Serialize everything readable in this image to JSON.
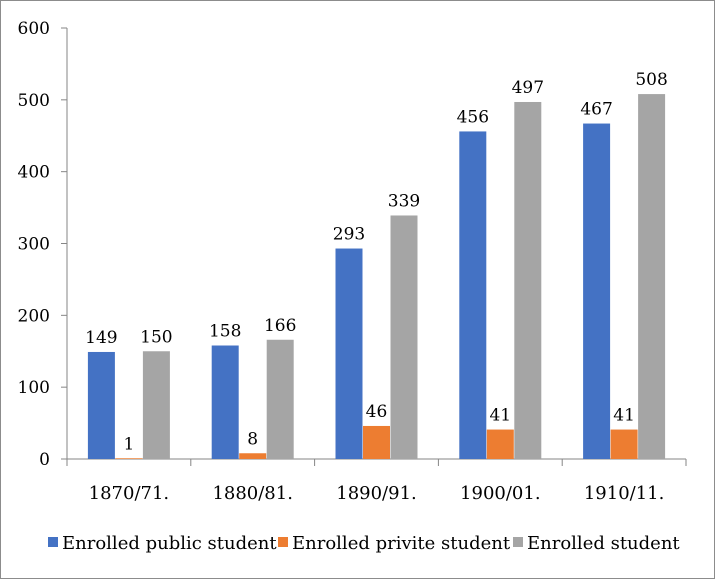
{
  "chart_data": {
    "type": "bar",
    "categories": [
      "1870/71.",
      "1880/81.",
      "1890/91.",
      "1900/01.",
      "1910/11."
    ],
    "series": [
      {
        "name": "Enrolled public student",
        "values": [
          149,
          158,
          293,
          456,
          467
        ],
        "color": "#4472c4"
      },
      {
        "name": "Enrolled privite student",
        "values": [
          1,
          8,
          46,
          41,
          41
        ],
        "color": "#ed7d31"
      },
      {
        "name": "Enrolled student",
        "values": [
          150,
          166,
          339,
          497,
          508
        ],
        "color": "#a5a5a5"
      }
    ],
    "ylim": [
      0,
      600
    ],
    "yticks": [
      0,
      100,
      200,
      300,
      400,
      500,
      600
    ],
    "grid": false,
    "legend_position": "bottom",
    "data_labels": true,
    "title": "",
    "xlabel": "",
    "ylabel": ""
  }
}
